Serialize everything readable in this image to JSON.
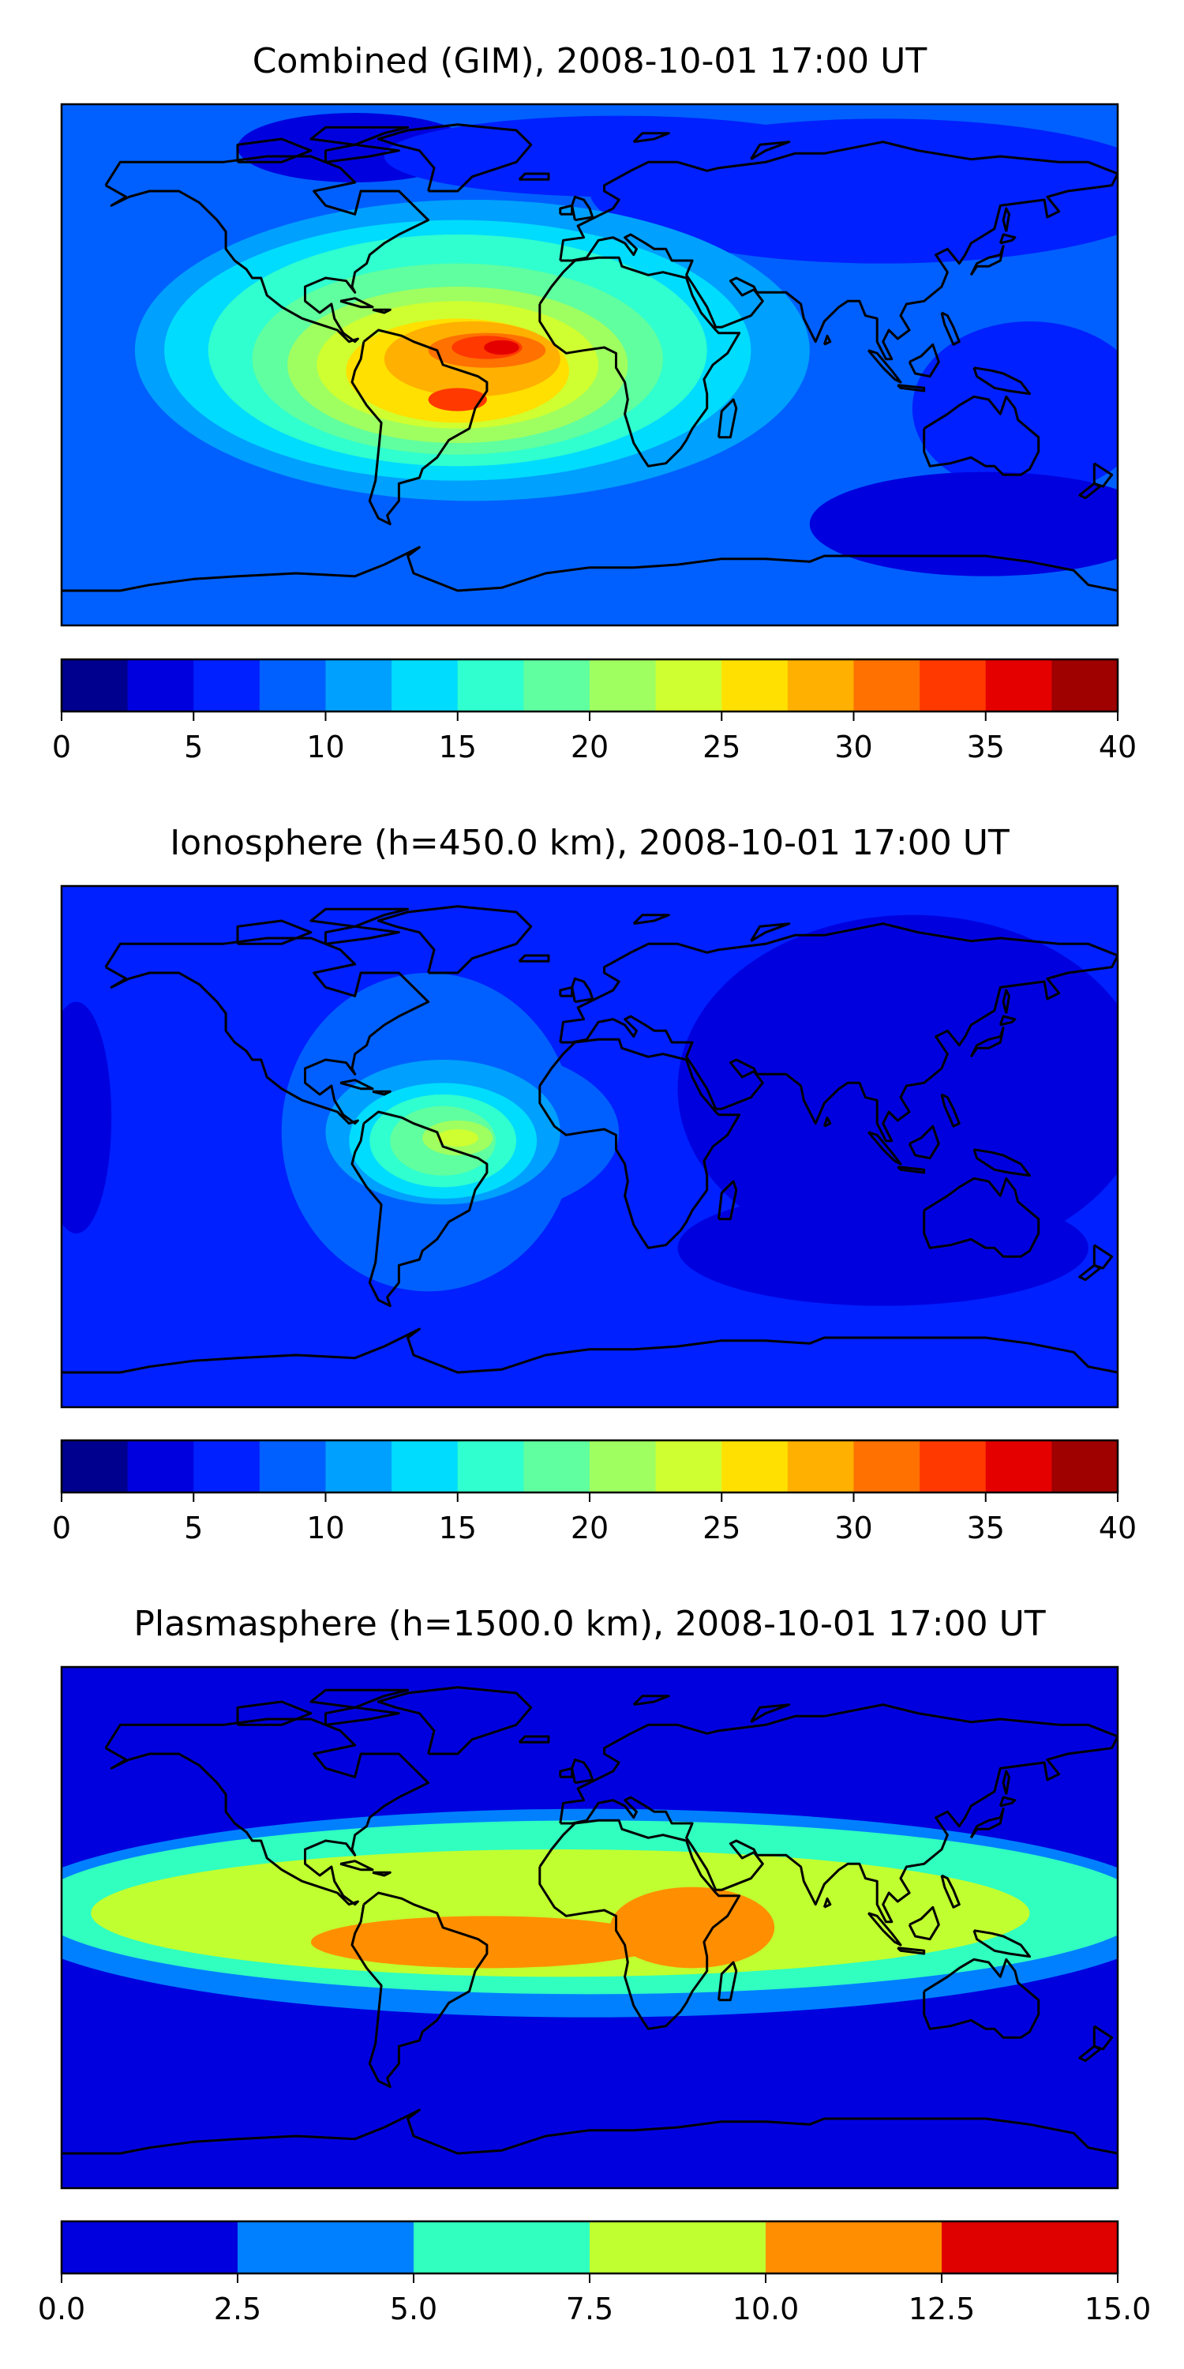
{
  "chart_data": [
    {
      "type": "heatmap",
      "title": "Combined (GIM), 2008-10-01 17:00 UT",
      "colorbar": {
        "ticks": [
          "0",
          "5",
          "10",
          "15",
          "20",
          "25",
          "30",
          "35",
          "40"
        ],
        "range": [
          0,
          40
        ],
        "bin_edges": [
          0,
          2.5,
          5,
          7.5,
          10,
          12.5,
          15,
          17.5,
          20,
          22.5,
          25,
          27.5,
          30,
          32.5,
          35,
          37.5,
          40
        ],
        "colors": [
          "#00008f",
          "#0000df",
          "#0020ff",
          "#0060ff",
          "#00a0ff",
          "#00dcfe",
          "#30ffcf",
          "#60ff9f",
          "#9fff60",
          "#cfff30",
          "#ffe000",
          "#ffb000",
          "#ff7100",
          "#ff3900",
          "#e50000",
          "#9f0000"
        ]
      },
      "field": {
        "background_level": 3,
        "regions": [
          {
            "lon": -80,
            "lat": 75,
            "rx": 40,
            "ry": 12,
            "level": 1
          },
          {
            "lon": 10,
            "lat": 72,
            "rx": 80,
            "ry": 14,
            "level": 2
          },
          {
            "lon": 100,
            "lat": 60,
            "rx": 100,
            "ry": 25,
            "level": 2
          },
          {
            "lon": 150,
            "lat": -15,
            "rx": 40,
            "ry": 30,
            "level": 2
          },
          {
            "lon": 135,
            "lat": -55,
            "rx": 60,
            "ry": 18,
            "level": 1
          },
          {
            "lon": -40,
            "lat": 5,
            "rx": 115,
            "ry": 52,
            "level": 4
          },
          {
            "lon": -45,
            "lat": 5,
            "rx": 100,
            "ry": 45,
            "level": 5
          },
          {
            "lon": -45,
            "lat": 5,
            "rx": 85,
            "ry": 40,
            "level": 6
          },
          {
            "lon": -45,
            "lat": 2,
            "rx": 70,
            "ry": 33,
            "level": 7
          },
          {
            "lon": -45,
            "lat": 0,
            "rx": 58,
            "ry": 27,
            "level": 8
          },
          {
            "lon": -45,
            "lat": 0,
            "rx": 48,
            "ry": 22,
            "level": 9
          },
          {
            "lon": -45,
            "lat": -2,
            "rx": 38,
            "ry": 18,
            "level": 10
          },
          {
            "lon": -40,
            "lat": 2,
            "rx": 30,
            "ry": 13,
            "level": 11
          },
          {
            "lon": -45,
            "lat": -12,
            "rx": 10,
            "ry": 4,
            "level": 13
          },
          {
            "lon": -35,
            "lat": 5,
            "rx": 20,
            "ry": 6,
            "level": 12
          },
          {
            "lon": -35,
            "lat": 6,
            "rx": 12,
            "ry": 4,
            "level": 13
          },
          {
            "lon": -30,
            "lat": 6,
            "rx": 6,
            "ry": 2.5,
            "level": 14
          }
        ]
      }
    },
    {
      "type": "heatmap",
      "title": "Ionosphere  (h=450.0 km), 2008-10-01 17:00 UT",
      "colorbar": {
        "ticks": [
          "0",
          "5",
          "10",
          "15",
          "20",
          "25",
          "30",
          "35",
          "40"
        ],
        "range": [
          0,
          40
        ],
        "bin_edges": [
          0,
          2.5,
          5,
          7.5,
          10,
          12.5,
          15,
          17.5,
          20,
          22.5,
          25,
          27.5,
          30,
          32.5,
          35,
          37.5,
          40
        ],
        "colors": [
          "#00008f",
          "#0000df",
          "#0020ff",
          "#0060ff",
          "#00a0ff",
          "#00dcfe",
          "#30ffcf",
          "#60ff9f",
          "#9fff60",
          "#cfff30",
          "#ffe000",
          "#ffb000",
          "#ff7100",
          "#ff3900",
          "#e50000",
          "#9f0000"
        ]
      },
      "field": {
        "background_level": 2,
        "regions": [
          {
            "lon": 110,
            "lat": 20,
            "rx": 80,
            "ry": 60,
            "level": 1
          },
          {
            "lon": 100,
            "lat": -35,
            "rx": 70,
            "ry": 20,
            "level": 1
          },
          {
            "lon": -175,
            "lat": 10,
            "rx": 12,
            "ry": 40,
            "level": 1
          },
          {
            "lon": -55,
            "lat": 5,
            "rx": 50,
            "ry": 55,
            "level": 3
          },
          {
            "lon": -45,
            "lat": 5,
            "rx": 55,
            "ry": 30,
            "level": 3
          },
          {
            "lon": -50,
            "lat": 5,
            "rx": 40,
            "ry": 25,
            "level": 4
          },
          {
            "lon": -50,
            "lat": 2,
            "rx": 32,
            "ry": 20,
            "level": 5
          },
          {
            "lon": -50,
            "lat": 2,
            "rx": 25,
            "ry": 16,
            "level": 6
          },
          {
            "lon": -50,
            "lat": 2,
            "rx": 18,
            "ry": 12,
            "level": 7
          },
          {
            "lon": -45,
            "lat": 3,
            "rx": 12,
            "ry": 6,
            "level": 8
          },
          {
            "lon": -45,
            "lat": 3,
            "rx": 7,
            "ry": 3,
            "level": 9
          }
        ]
      }
    },
    {
      "type": "heatmap",
      "title": "Plasmasphere (h=1500.0 km), 2008-10-01 17:00 UT",
      "colorbar": {
        "ticks": [
          "0.0",
          "2.5",
          "5.0",
          "7.5",
          "10.0",
          "12.5",
          "15.0"
        ],
        "range": [
          0,
          15
        ],
        "bin_edges": [
          0,
          2.5,
          5,
          7.5,
          10,
          12.5,
          15
        ],
        "colors": [
          "#0000df",
          "#0080ff",
          "#30ffc0",
          "#c0ff30",
          "#ff8f00",
          "#df0000"
        ]
      },
      "field": {
        "background_level": 0,
        "regions": [
          {
            "lon": 0,
            "lat": 5,
            "rx": 200,
            "ry": 36,
            "level": 1
          },
          {
            "lon": 0,
            "lat": 7,
            "rx": 190,
            "ry": 30,
            "level": 2
          },
          {
            "lon": -10,
            "lat": 5,
            "rx": 160,
            "ry": 22,
            "level": 3
          },
          {
            "lon": -35,
            "lat": -5,
            "rx": 60,
            "ry": 9,
            "level": 4
          },
          {
            "lon": 35,
            "lat": 0,
            "rx": 28,
            "ry": 14,
            "level": 4
          }
        ]
      }
    }
  ]
}
